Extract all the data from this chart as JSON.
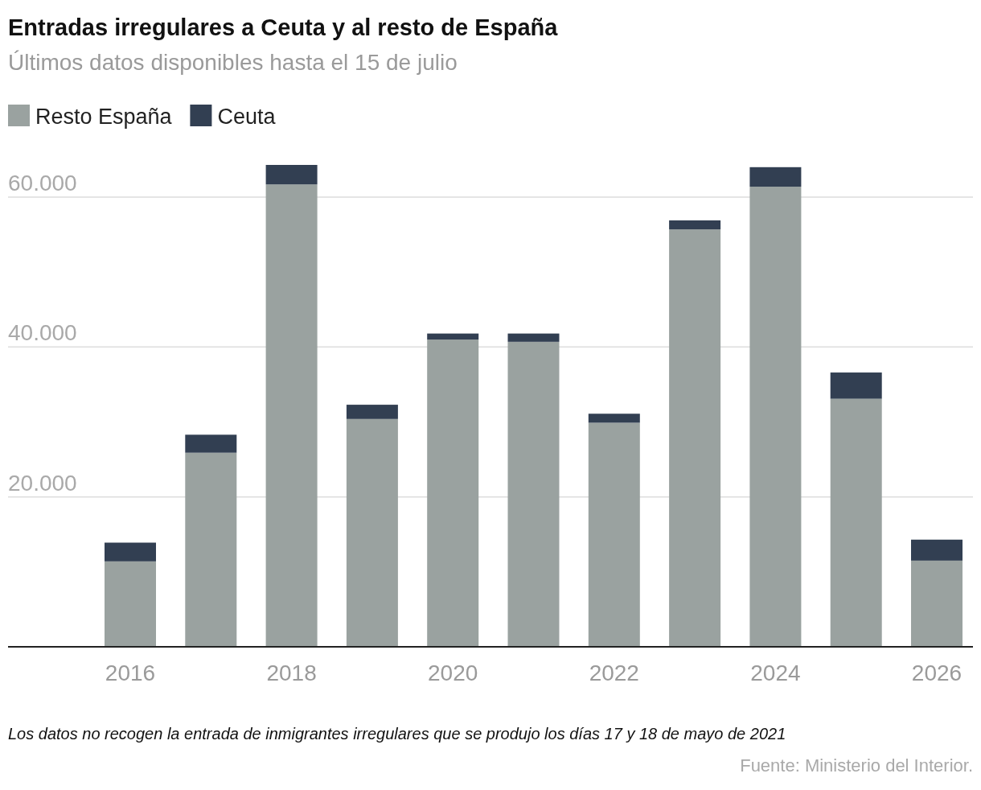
{
  "chart_data": {
    "type": "bar",
    "title": "Entradas irregulares a Ceuta y al resto de España",
    "subtitle": "Últimos datos disponibles hasta el 15 de julio",
    "annotations": [
      "Los datos no recogen la entrada de inmigrantes irregulares que se produjo los días 17 y 18 de mayo de 2021",
      "Fuente: Ministerio del Interior."
    ],
    "categories": [
      "2016",
      null,
      "2018",
      null,
      "2020",
      null,
      "2022",
      null,
      "2024",
      null,
      "2026"
    ],
    "stacked": true,
    "series": [
      {
        "name": "Resto España",
        "color": "#9aa2a0",
        "values": [
          11400,
          25900,
          61700,
          30400,
          41000,
          40700,
          29900,
          55700,
          61400,
          33100,
          11500
        ]
      },
      {
        "name": "Ceuta",
        "color": "#323f52",
        "values": [
          2500,
          2400,
          2600,
          1900,
          800,
          1100,
          1200,
          1200,
          2600,
          3500,
          2800
        ]
      }
    ],
    "ylim": [
      0,
      64300
    ],
    "yticks": [
      {
        "value": 20000,
        "label": "20.000"
      },
      {
        "value": 40000,
        "label": "40.000"
      },
      {
        "value": 60000,
        "label": "60.000"
      }
    ],
    "grid": "y",
    "legend": "top left"
  }
}
